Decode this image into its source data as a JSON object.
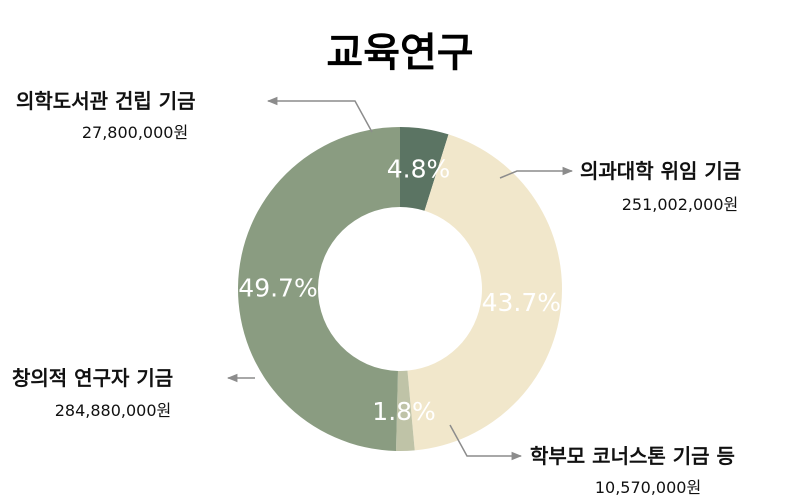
{
  "chart_data": {
    "type": "pie",
    "style": "donut",
    "title": "교육연구",
    "colors": [
      "#5b7463",
      "#f1e7cb",
      "#bfc3a7",
      "#8a9c81"
    ],
    "slices": [
      {
        "name": "의학도서관 건립 기금",
        "amount": "27,800,000원",
        "value": 27800000,
        "percent": "4.8%"
      },
      {
        "name": "의과대학 위임 기금",
        "amount": "251,002,000원",
        "value": 251002000,
        "percent": "43.7%"
      },
      {
        "name": "학부모 코너스톤 기금 등",
        "amount": "10,570,000원",
        "value": 10570000,
        "percent": "1.8%"
      },
      {
        "name": "창의적 연구자 기금",
        "amount": "284,880,000원",
        "value": 284880000,
        "percent": "49.7%"
      }
    ]
  }
}
